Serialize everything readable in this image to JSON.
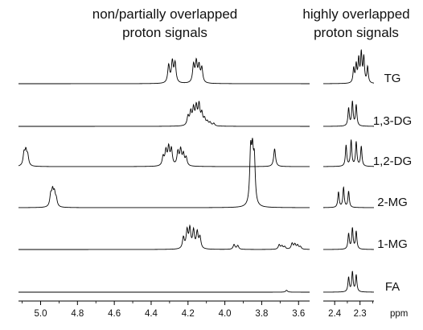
{
  "header": {
    "left_line1": "non/partially overlapped",
    "left_line2": "proton signals",
    "right_line1": "highly overlapped",
    "right_line2": "proton signals"
  },
  "chart_data": {
    "type": "line",
    "title": "",
    "xlabel": "ppm",
    "ylabel": "",
    "grid": false,
    "panels": [
      {
        "name": "non/partially overlapped proton signals",
        "xlim": [
          5.12,
          3.54
        ],
        "ticks": [
          "5.0",
          "4.8",
          "4.6",
          "4.4",
          "4.2",
          "4.0",
          "3.8",
          "3.6"
        ]
      },
      {
        "name": "highly overlapped proton signals",
        "xlim": [
          2.445,
          2.245
        ],
        "ticks": [
          "2.4",
          "2.3"
        ]
      }
    ],
    "series": [
      {
        "name": "TG",
        "left_peaks": [
          [
            4.305,
            0.55
          ],
          [
            4.285,
            0.65
          ],
          [
            4.27,
            0.6
          ],
          [
            4.17,
            0.55
          ],
          [
            4.155,
            0.62
          ],
          [
            4.14,
            0.5
          ],
          [
            4.125,
            0.45
          ]
        ],
        "right_peaks": [
          [
            2.325,
            0.45
          ],
          [
            2.315,
            0.55
          ],
          [
            2.305,
            0.72
          ],
          [
            2.295,
            0.9
          ],
          [
            2.285,
            0.78
          ],
          [
            2.27,
            0.5
          ]
        ]
      },
      {
        "name": "1,3-DG",
        "left_peaks": [
          [
            4.2,
            0.28
          ],
          [
            4.185,
            0.4
          ],
          [
            4.17,
            0.5
          ],
          [
            4.155,
            0.55
          ],
          [
            4.14,
            0.62
          ],
          [
            4.125,
            0.35
          ],
          [
            4.11,
            0.2
          ],
          [
            4.095,
            0.12
          ],
          [
            4.08,
            0.1
          ],
          [
            4.06,
            0.08
          ]
        ],
        "right_peaks": [
          [
            2.345,
            0.55
          ],
          [
            2.33,
            0.75
          ],
          [
            2.315,
            0.65
          ]
        ]
      },
      {
        "name": "1,2-DG",
        "left_peaks": [
          [
            5.09,
            0.38
          ],
          [
            5.08,
            0.42
          ],
          [
            5.07,
            0.3
          ],
          [
            4.335,
            0.28
          ],
          [
            4.32,
            0.45
          ],
          [
            4.305,
            0.55
          ],
          [
            4.29,
            0.5
          ],
          [
            4.255,
            0.42
          ],
          [
            4.24,
            0.48
          ],
          [
            4.225,
            0.35
          ],
          [
            4.21,
            0.25
          ],
          [
            3.73,
            0.55
          ]
        ],
        "right_peaks": [
          [
            2.355,
            0.65
          ],
          [
            2.335,
            0.8
          ],
          [
            2.315,
            0.75
          ],
          [
            2.295,
            0.62
          ]
        ]
      },
      {
        "name": "2-MG",
        "left_peaks": [
          [
            4.945,
            0.35
          ],
          [
            4.935,
            0.45
          ],
          [
            4.925,
            0.38
          ],
          [
            4.915,
            0.22
          ],
          [
            3.86,
            1.6
          ],
          [
            3.85,
            1.4
          ],
          [
            3.84,
            1.3
          ]
        ],
        "right_peaks": [
          [
            2.385,
            0.48
          ],
          [
            2.365,
            0.62
          ],
          [
            2.345,
            0.5
          ]
        ]
      },
      {
        "name": "1-MG",
        "left_peaks": [
          [
            4.225,
            0.35
          ],
          [
            4.205,
            0.55
          ],
          [
            4.19,
            0.6
          ],
          [
            4.17,
            0.55
          ],
          [
            4.15,
            0.5
          ],
          [
            4.135,
            0.35
          ],
          [
            3.95,
            0.15
          ],
          [
            3.93,
            0.12
          ],
          [
            3.705,
            0.14
          ],
          [
            3.69,
            0.1
          ],
          [
            3.675,
            0.08
          ],
          [
            3.635,
            0.18
          ],
          [
            3.62,
            0.15
          ],
          [
            3.605,
            0.12
          ],
          [
            3.59,
            0.08
          ]
        ],
        "right_peaks": [
          [
            2.345,
            0.48
          ],
          [
            2.33,
            0.65
          ],
          [
            2.315,
            0.55
          ]
        ]
      },
      {
        "name": "FA",
        "left_peaks": [
          [
            3.665,
            0.06
          ]
        ],
        "right_peaks": [
          [
            2.345,
            0.45
          ],
          [
            2.33,
            0.62
          ],
          [
            2.315,
            0.52
          ]
        ]
      }
    ]
  }
}
